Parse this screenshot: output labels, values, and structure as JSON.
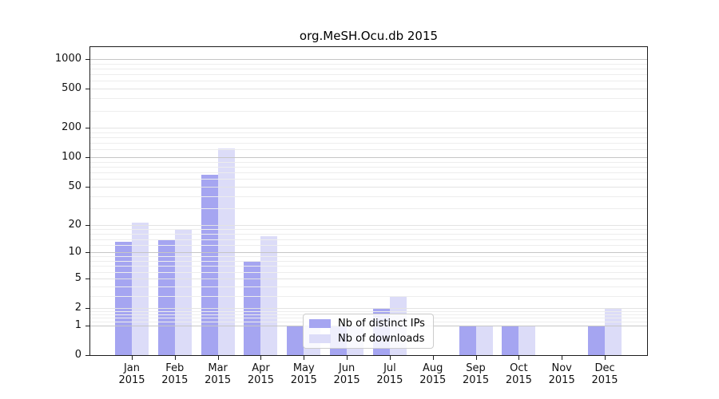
{
  "title": "org.MeSH.Ocu.db 2015",
  "colors": {
    "distinct_ips": "#a5a5f1",
    "downloads": "#dcdcf8",
    "axis": "#1c1c1c",
    "grid_power": "#c6c6c6",
    "grid_major": "#e3e3e3",
    "grid_minor": "#ededed"
  },
  "legend": {
    "items": [
      {
        "label": "Nb of distinct IPs",
        "series": "distinct_ips"
      },
      {
        "label": "Nb of downloads",
        "series": "downloads"
      }
    ]
  },
  "y_axis": {
    "ticks": [
      0,
      1,
      2,
      5,
      10,
      20,
      50,
      100,
      200,
      500,
      1000
    ],
    "minor_subs": [
      1.2,
      1.4,
      1.6,
      1.8,
      3,
      4,
      6,
      7,
      8,
      9
    ],
    "minor_decades": [
      1,
      10,
      100
    ]
  },
  "x_axis": {
    "months": [
      {
        "label": "Jan",
        "year": "2015"
      },
      {
        "label": "Feb",
        "year": "2015"
      },
      {
        "label": "Mar",
        "year": "2015"
      },
      {
        "label": "Apr",
        "year": "2015"
      },
      {
        "label": "May",
        "year": "2015"
      },
      {
        "label": "Jun",
        "year": "2015"
      },
      {
        "label": "Jul",
        "year": "2015"
      },
      {
        "label": "Aug",
        "year": "2015"
      },
      {
        "label": "Sep",
        "year": "2015"
      },
      {
        "label": "Oct",
        "year": "2015"
      },
      {
        "label": "Nov",
        "year": "2015"
      },
      {
        "label": "Dec",
        "year": "2015"
      }
    ]
  },
  "chart_data": {
    "type": "bar",
    "title": "org.MeSH.Ocu.db 2015",
    "categories": [
      "Jan 2015",
      "Feb 2015",
      "Mar 2015",
      "Apr 2015",
      "May 2015",
      "Jun 2015",
      "Jul 2015",
      "Aug 2015",
      "Sep 2015",
      "Oct 2015",
      "Nov 2015",
      "Dec 2015"
    ],
    "series": [
      {
        "name": "Nb of distinct IPs",
        "color": "#a5a5f1",
        "values": [
          13,
          14,
          66,
          8,
          1,
          1,
          2,
          0,
          1,
          1,
          0,
          1
        ]
      },
      {
        "name": "Nb of downloads",
        "color": "#dcdcf8",
        "values": [
          21,
          18,
          123,
          15,
          1,
          1,
          3,
          0,
          1,
          1,
          0,
          2
        ]
      }
    ],
    "xlabel": "",
    "ylabel": "",
    "yscale": "log1p",
    "ylim": [
      0,
      1320
    ],
    "y_ticks": [
      0,
      1,
      2,
      5,
      10,
      20,
      50,
      100,
      200,
      500,
      1000
    ],
    "grid": true,
    "legend_position": "inside lower-center"
  }
}
